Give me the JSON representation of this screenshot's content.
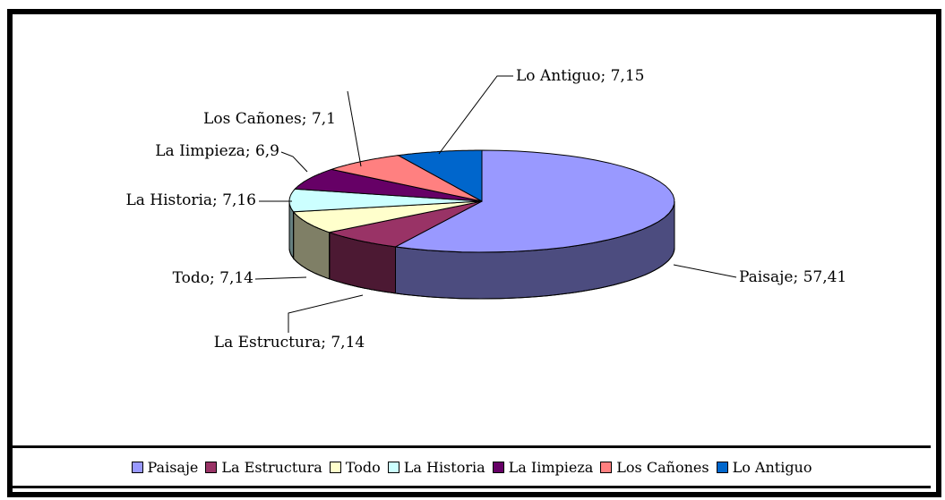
{
  "chart_data": {
    "type": "pie3d",
    "categories": [
      "Paisaje",
      "La Estructura",
      "Todo",
      "La Historia",
      "La Iimpieza",
      "Los Cañones",
      "Lo Antiguo"
    ],
    "values": [
      57.41,
      7.14,
      7.14,
      7.16,
      6.9,
      7.1,
      7.15
    ],
    "value_labels": [
      "Paisaje; 57,41",
      "La Estructura; 7,14",
      "Todo; 7,14",
      "La Historia; 7,16",
      "La Iimpieza; 6,9",
      "Los Cañones; 7,1",
      "Lo Antiguo; 7,15"
    ],
    "colors": [
      "#9999ff",
      "#993366",
      "#ffffcc",
      "#ccffff",
      "#660066",
      "#ff8080",
      "#0066cc"
    ],
    "legend": "bottom"
  }
}
